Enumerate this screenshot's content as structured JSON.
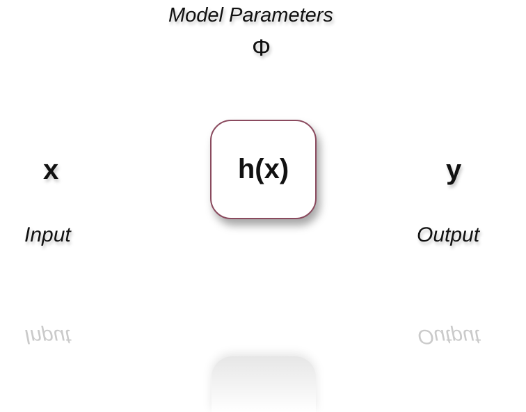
{
  "diagram": {
    "params_label": "Model Parameters",
    "params_symbol": "Φ",
    "input_var": "x",
    "output_var": "y",
    "function_label": "h(x)",
    "input_label": "Input",
    "output_label": "Output"
  },
  "colors": {
    "box_border": "#8a4a5e",
    "arrow": "#111111",
    "text": "#111111"
  }
}
